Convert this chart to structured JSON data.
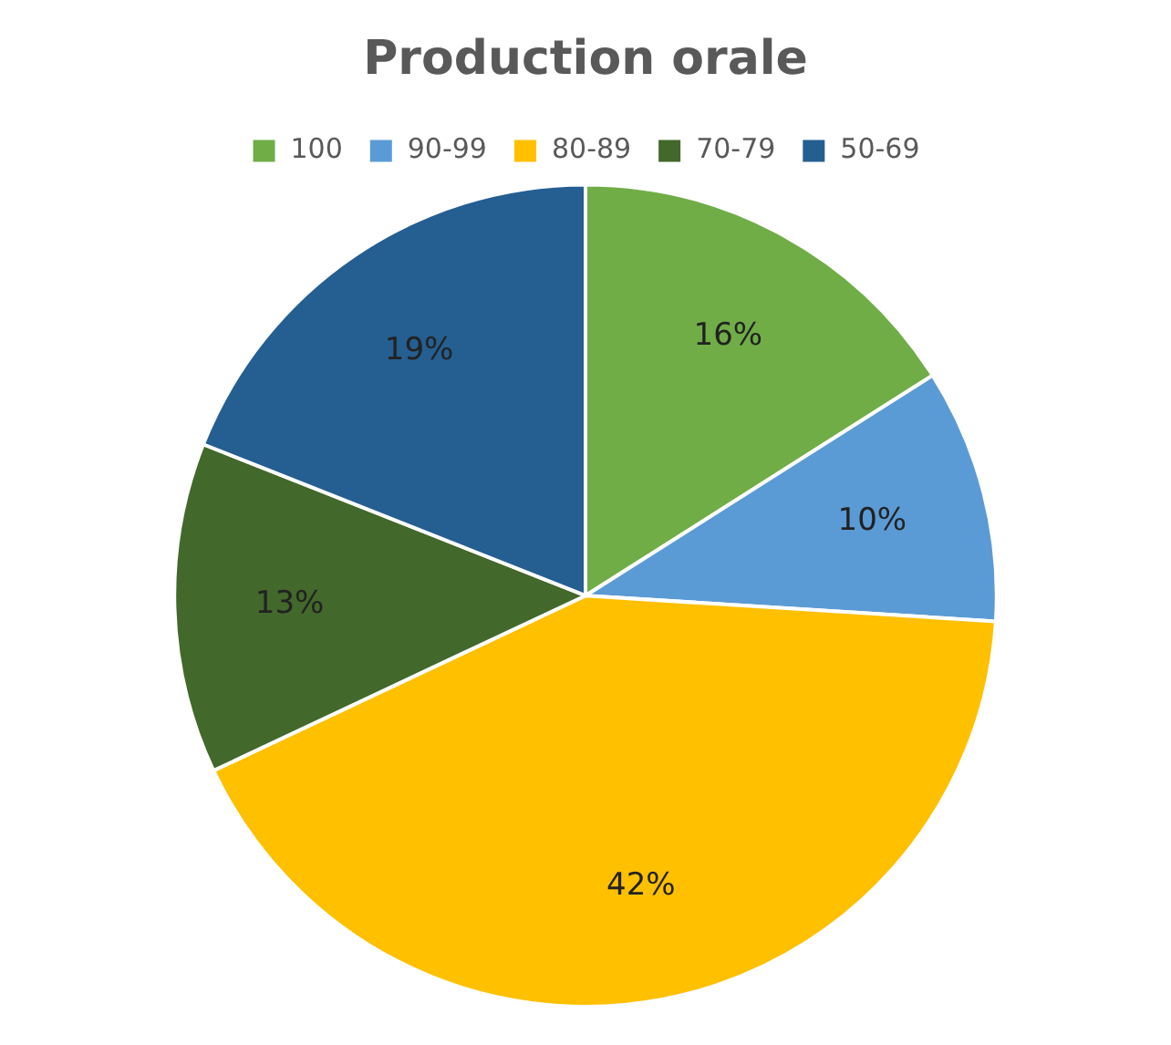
{
  "chart_data": {
    "type": "pie",
    "title": "Production orale",
    "categories": [
      "100",
      "90-99",
      "80-89",
      "70-79",
      "50-69"
    ],
    "values": [
      16,
      10,
      42,
      13,
      19
    ],
    "value_labels": [
      "16%",
      "10%",
      "42%",
      "13%",
      "19%"
    ],
    "colors": [
      "#70ad47",
      "#5b9bd5",
      "#ffc000",
      "#43682b",
      "#255e91"
    ],
    "legend": "top"
  }
}
